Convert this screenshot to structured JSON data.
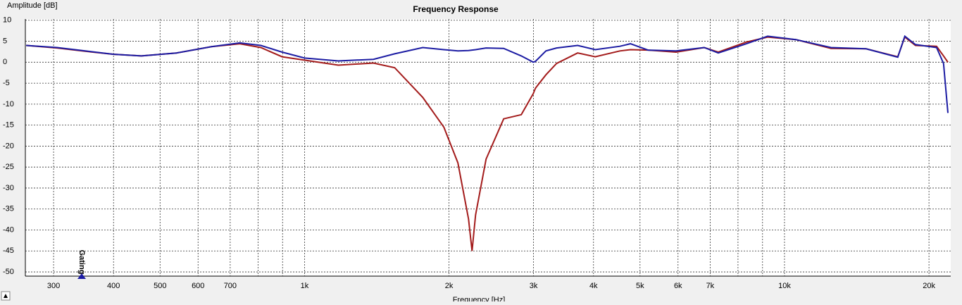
{
  "chart_data": {
    "type": "line",
    "title": "Frequency Response",
    "xlabel": "Frequency [Hz]",
    "ylabel": "Amplitude [dB]",
    "annotation": "Gating",
    "x": [
      263,
      305,
      349,
      399,
      457,
      541,
      640,
      733,
      811,
      898,
      1000,
      1176,
      1392,
      1541,
      1763,
      1951,
      2087,
      2196,
      2234,
      2272,
      2389,
      2600,
      2829,
      2996,
      3027,
      3184,
      3350,
      3706,
      4033,
      4540,
      4775,
      5194,
      5943,
      6805,
      7278,
      8331,
      9222,
      10556,
      12500,
      14790,
      17220,
      17810,
      18740,
      20740,
      21450,
      21900
    ],
    "series": [
      {
        "name": null,
        "color": "#a31b1b",
        "values": [
          4.0,
          3.4,
          2.6,
          1.9,
          1.5,
          2.2,
          3.7,
          4.4,
          3.5,
          1.3,
          0.5,
          -0.7,
          -0.2,
          -1.3,
          -8.4,
          -15.5,
          -24,
          -37.4,
          -45,
          -36.4,
          -23.1,
          -13.5,
          -12.5,
          -7.5,
          -6.2,
          -3.0,
          -0.3,
          2.2,
          1.3,
          2.7,
          3.0,
          2.9,
          2.4,
          3.5,
          2.4,
          4.8,
          6.0,
          5.4,
          3.3,
          3.2,
          1.3,
          6.0,
          4.0,
          3.8,
          1.5,
          0.0
        ]
      },
      {
        "name": null,
        "color": "#1c1ca3",
        "values": [
          4.0,
          3.5,
          2.7,
          1.9,
          1.5,
          2.2,
          3.7,
          4.6,
          4.0,
          2.4,
          1.0,
          0.3,
          0.7,
          2.0,
          3.5,
          3.0,
          2.7,
          2.8,
          2.9,
          3.0,
          3.4,
          3.3,
          1.5,
          0.0,
          0.2,
          2.7,
          3.4,
          4.0,
          3.0,
          3.8,
          4.4,
          2.9,
          2.7,
          3.5,
          2.2,
          4.4,
          6.2,
          5.4,
          3.5,
          3.2,
          1.2,
          6.2,
          4.2,
          3.5,
          -0.3,
          -12.1
        ]
      }
    ],
    "xscale": "log",
    "xlim": [
      262,
      22200
    ],
    "ylim": [
      -51,
      10.3
    ],
    "xticks": [
      300,
      400,
      500,
      600,
      700,
      {
        "value": 1000,
        "label": "1k"
      },
      {
        "value": 2000,
        "label": "2k"
      },
      {
        "value": 3000,
        "label": "3k"
      },
      {
        "value": 4000,
        "label": "4k"
      },
      {
        "value": 5000,
        "label": "5k"
      },
      {
        "value": 6000,
        "label": "6k"
      },
      {
        "value": 7000,
        "label": "7k"
      },
      {
        "value": 10000,
        "label": "10k"
      },
      {
        "value": 20000,
        "label": "20k"
      }
    ],
    "xgrid_minor": [
      800,
      900,
      8000,
      9000
    ],
    "yticks": [
      10,
      5,
      0,
      -5,
      -10,
      -15,
      -20,
      -25,
      -30,
      -35,
      -40,
      -45,
      -50
    ],
    "grid": true
  }
}
